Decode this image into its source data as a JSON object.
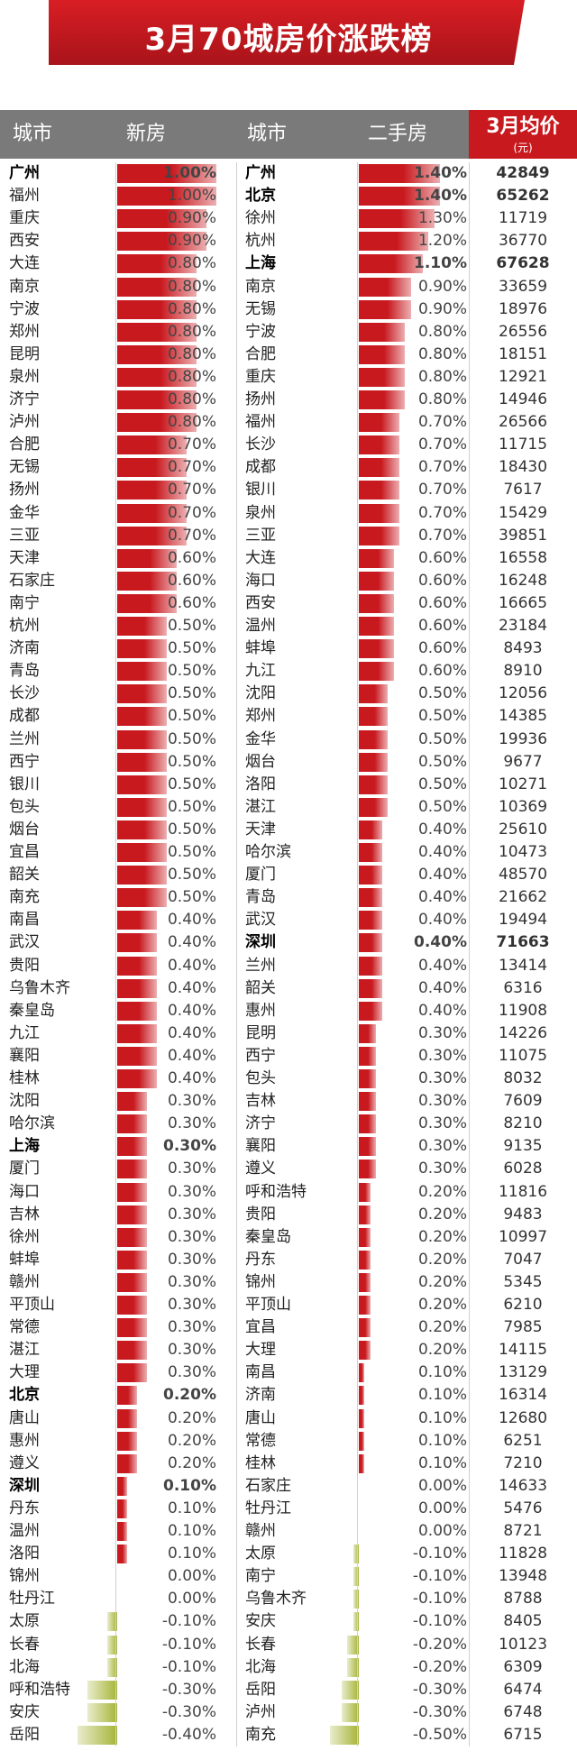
{
  "title": "3月70城房价涨跌榜",
  "headers": {
    "city1": "城市",
    "new_house": "新房",
    "city2": "城市",
    "second_hand": "二手房",
    "avg_price": "3月均价",
    "avg_price_unit": "(元)"
  },
  "colors": {
    "up": "#c8191f",
    "down": "#a6b437",
    "header_bg": "#7a7a7a",
    "price_header_bg": "#c8191f"
  },
  "chart_data": {
    "type": "bar",
    "title": "3月70城房价涨跌榜",
    "new_house": {
      "cities": [
        "广州",
        "福州",
        "重庆",
        "西安",
        "大连",
        "南京",
        "宁波",
        "郑州",
        "昆明",
        "泉州",
        "济宁",
        "泸州",
        "合肥",
        "无锡",
        "扬州",
        "金华",
        "三亚",
        "天津",
        "石家庄",
        "南宁",
        "杭州",
        "济南",
        "青岛",
        "长沙",
        "成都",
        "兰州",
        "西宁",
        "银川",
        "包头",
        "烟台",
        "宜昌",
        "韶关",
        "南充",
        "南昌",
        "武汉",
        "贵阳",
        "乌鲁木齐",
        "秦皇岛",
        "九江",
        "襄阳",
        "桂林",
        "沈阳",
        "哈尔滨",
        "上海",
        "厦门",
        "海口",
        "吉林",
        "徐州",
        "蚌埠",
        "赣州",
        "平顶山",
        "常德",
        "湛江",
        "大理",
        "北京",
        "唐山",
        "惠州",
        "遵义",
        "深圳",
        "丹东",
        "温州",
        "洛阳",
        "锦州",
        "牡丹江",
        "太原",
        "长春",
        "北海",
        "呼和浩特",
        "安庆",
        "岳阳"
      ],
      "labels": [
        "1.00%",
        "1.00%",
        "0.90%",
        "0.90%",
        "0.80%",
        "0.80%",
        "0.80%",
        "0.80%",
        "0.80%",
        "0.80%",
        "0.80%",
        "0.80%",
        "0.70%",
        "0.70%",
        "0.70%",
        "0.70%",
        "0.70%",
        "0.60%",
        "0.60%",
        "0.60%",
        "0.50%",
        "0.50%",
        "0.50%",
        "0.50%",
        "0.50%",
        "0.50%",
        "0.50%",
        "0.50%",
        "0.50%",
        "0.50%",
        "0.50%",
        "0.50%",
        "0.50%",
        "0.40%",
        "0.40%",
        "0.40%",
        "0.40%",
        "0.40%",
        "0.40%",
        "0.40%",
        "0.40%",
        "0.30%",
        "0.30%",
        "0.30%",
        "0.30%",
        "0.30%",
        "0.30%",
        "0.30%",
        "0.30%",
        "0.30%",
        "0.30%",
        "0.30%",
        "0.30%",
        "0.30%",
        "0.20%",
        "0.20%",
        "0.20%",
        "0.20%",
        "0.10%",
        "0.10%",
        "0.10%",
        "0.10%",
        "0.00%",
        "0.00%",
        "-0.10%",
        "-0.10%",
        "-0.10%",
        "-0.30%",
        "-0.30%",
        "-0.40%"
      ],
      "values": [
        1.0,
        1.0,
        0.9,
        0.9,
        0.8,
        0.8,
        0.8,
        0.8,
        0.8,
        0.8,
        0.8,
        0.8,
        0.7,
        0.7,
        0.7,
        0.7,
        0.7,
        0.6,
        0.6,
        0.6,
        0.5,
        0.5,
        0.5,
        0.5,
        0.5,
        0.5,
        0.5,
        0.5,
        0.5,
        0.5,
        0.5,
        0.5,
        0.5,
        0.4,
        0.4,
        0.4,
        0.4,
        0.4,
        0.4,
        0.4,
        0.4,
        0.3,
        0.3,
        0.3,
        0.3,
        0.3,
        0.3,
        0.3,
        0.3,
        0.3,
        0.3,
        0.3,
        0.3,
        0.3,
        0.2,
        0.2,
        0.2,
        0.2,
        0.1,
        0.1,
        0.1,
        0.1,
        0.0,
        0.0,
        -0.1,
        -0.1,
        -0.1,
        -0.3,
        -0.3,
        -0.4
      ],
      "bold": [
        "广州",
        "上海",
        "北京",
        "深圳"
      ]
    },
    "second_hand": {
      "cities": [
        "广州",
        "北京",
        "徐州",
        "杭州",
        "上海",
        "南京",
        "无锡",
        "宁波",
        "合肥",
        "重庆",
        "扬州",
        "福州",
        "长沙",
        "成都",
        "银川",
        "泉州",
        "三亚",
        "大连",
        "海口",
        "西安",
        "温州",
        "蚌埠",
        "九江",
        "沈阳",
        "郑州",
        "金华",
        "烟台",
        "洛阳",
        "湛江",
        "天津",
        "哈尔滨",
        "厦门",
        "青岛",
        "武汉",
        "深圳",
        "兰州",
        "韶关",
        "惠州",
        "昆明",
        "西宁",
        "包头",
        "吉林",
        "济宁",
        "襄阳",
        "遵义",
        "呼和浩特",
        "贵阳",
        "秦皇岛",
        "丹东",
        "锦州",
        "平顶山",
        "宜昌",
        "大理",
        "南昌",
        "济南",
        "唐山",
        "常德",
        "桂林",
        "石家庄",
        "牡丹江",
        "赣州",
        "太原",
        "南宁",
        "乌鲁木齐",
        "安庆",
        "长春",
        "北海",
        "岳阳",
        "泸州",
        "南充"
      ],
      "labels": [
        "1.40%",
        "1.40%",
        "1.30%",
        "1.20%",
        "1.10%",
        "0.90%",
        "0.90%",
        "0.80%",
        "0.80%",
        "0.80%",
        "0.80%",
        "0.70%",
        "0.70%",
        "0.70%",
        "0.70%",
        "0.70%",
        "0.70%",
        "0.60%",
        "0.60%",
        "0.60%",
        "0.60%",
        "0.60%",
        "0.60%",
        "0.50%",
        "0.50%",
        "0.50%",
        "0.50%",
        "0.50%",
        "0.50%",
        "0.40%",
        "0.40%",
        "0.40%",
        "0.40%",
        "0.40%",
        "0.40%",
        "0.40%",
        "0.40%",
        "0.40%",
        "0.30%",
        "0.30%",
        "0.30%",
        "0.30%",
        "0.30%",
        "0.30%",
        "0.30%",
        "0.20%",
        "0.20%",
        "0.20%",
        "0.20%",
        "0.20%",
        "0.20%",
        "0.20%",
        "0.20%",
        "0.10%",
        "0.10%",
        "0.10%",
        "0.10%",
        "0.10%",
        "0.00%",
        "0.00%",
        "0.00%",
        "-0.10%",
        "-0.10%",
        "-0.10%",
        "-0.10%",
        "-0.20%",
        "-0.20%",
        "-0.30%",
        "-0.30%",
        "-0.50%"
      ],
      "values": [
        1.4,
        1.4,
        1.3,
        1.2,
        1.1,
        0.9,
        0.9,
        0.8,
        0.8,
        0.8,
        0.8,
        0.7,
        0.7,
        0.7,
        0.7,
        0.7,
        0.7,
        0.6,
        0.6,
        0.6,
        0.6,
        0.6,
        0.6,
        0.5,
        0.5,
        0.5,
        0.5,
        0.5,
        0.5,
        0.4,
        0.4,
        0.4,
        0.4,
        0.4,
        0.4,
        0.4,
        0.4,
        0.4,
        0.3,
        0.3,
        0.3,
        0.3,
        0.3,
        0.3,
        0.3,
        0.2,
        0.2,
        0.2,
        0.2,
        0.2,
        0.2,
        0.2,
        0.2,
        0.1,
        0.1,
        0.1,
        0.1,
        0.1,
        0.0,
        0.0,
        0.0,
        -0.1,
        -0.1,
        -0.1,
        -0.1,
        -0.2,
        -0.2,
        -0.3,
        -0.3,
        -0.5
      ],
      "bold": [
        "广州",
        "北京",
        "上海",
        "深圳"
      ],
      "prices": [
        "42849",
        "65262",
        "11719",
        "36770",
        "67628",
        "33659",
        "18976",
        "26556",
        "18151",
        "12921",
        "14946",
        "26566",
        "11715",
        "18430",
        "7617",
        "15429",
        "39851",
        "16558",
        "16248",
        "16665",
        "23184",
        "8493",
        "8910",
        "12056",
        "14385",
        "19936",
        "9677",
        "10271",
        "10369",
        "25610",
        "10473",
        "48570",
        "21662",
        "19494",
        "71663",
        "13414",
        "6316",
        "11908",
        "14226",
        "11075",
        "8032",
        "7609",
        "8210",
        "9135",
        "6028",
        "11816",
        "9483",
        "10997",
        "7047",
        "5345",
        "6210",
        "7985",
        "14115",
        "13129",
        "16314",
        "12680",
        "6251",
        "7210",
        "14633",
        "5476",
        "8721",
        "11828",
        "13948",
        "8788",
        "8405",
        "10123",
        "6309",
        "6474",
        "6748",
        "6715"
      ]
    }
  }
}
